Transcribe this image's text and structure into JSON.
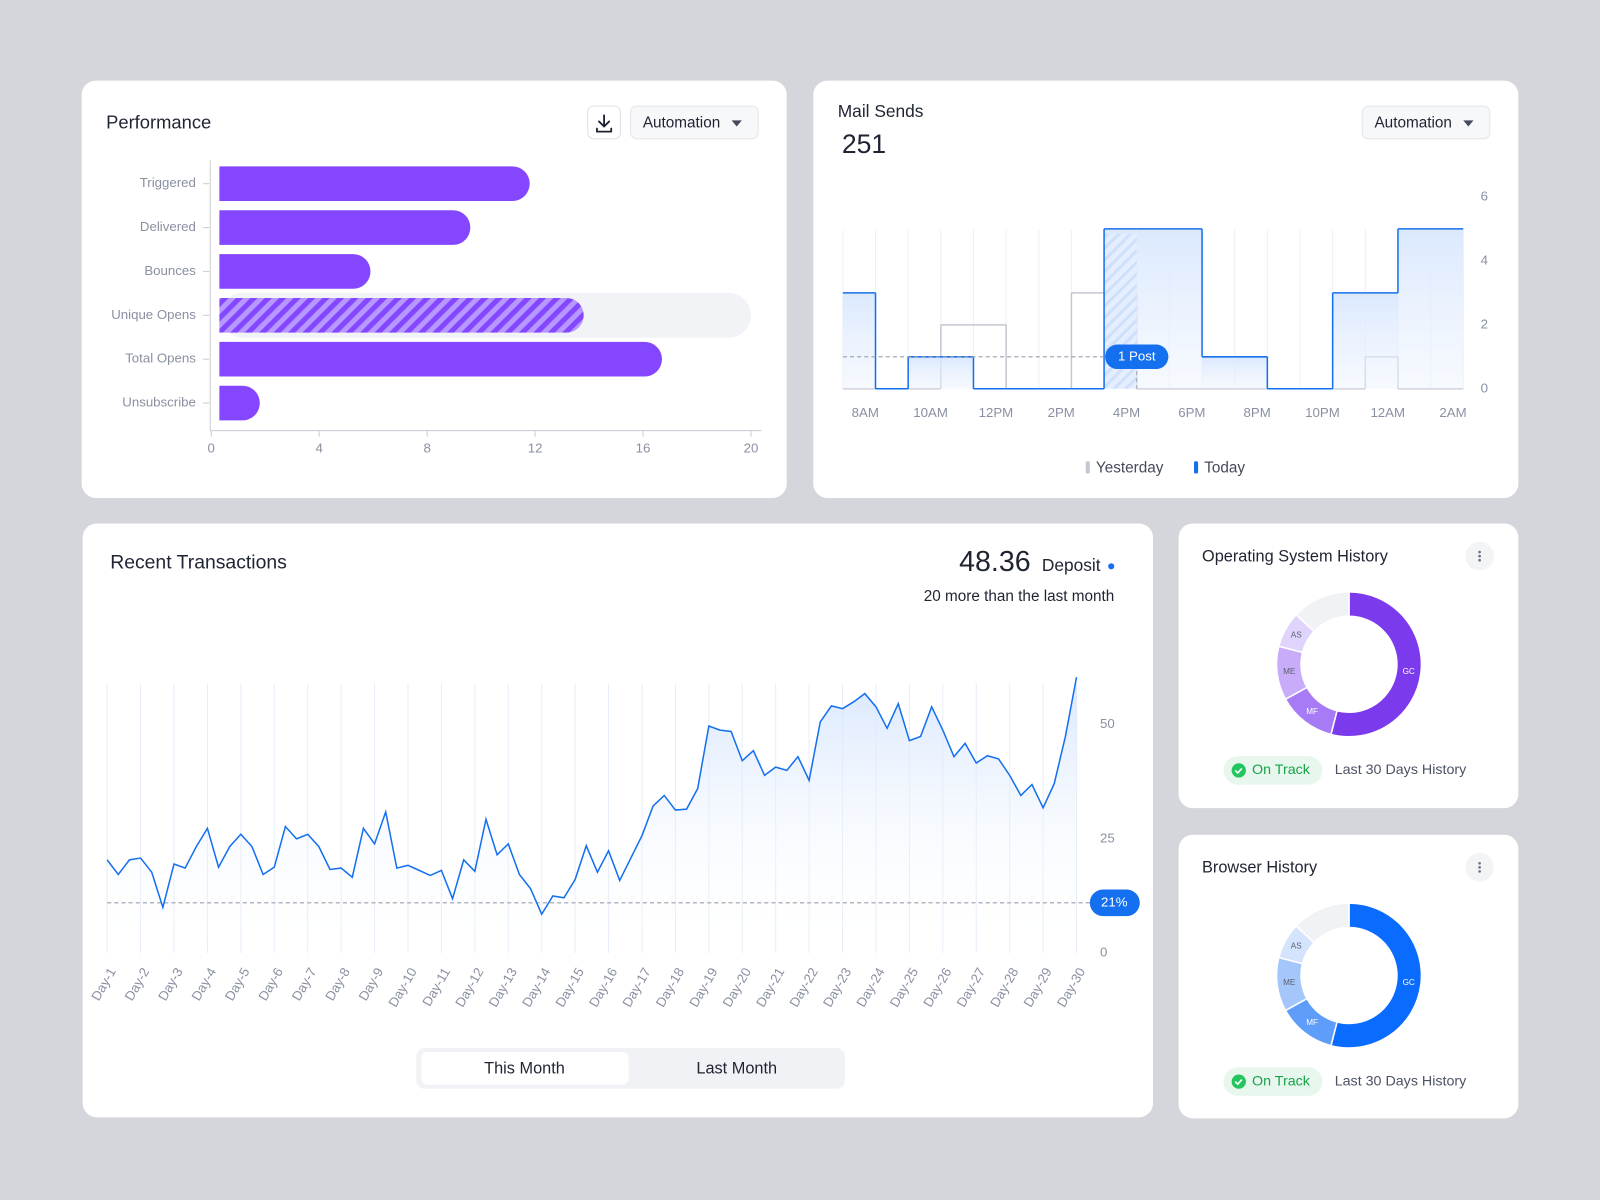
{
  "chart_data": [
    {
      "type": "hbar",
      "title": "Performance",
      "dropdown": "Automation",
      "categories": [
        "Triggered",
        "Delivered",
        "Bounces",
        "Unique Opens",
        "Total Opens",
        "Unsubscribe"
      ],
      "values": [
        11.8,
        9.6,
        5.9,
        13.8,
        16.7,
        1.8
      ],
      "hatched": [
        false,
        false,
        false,
        true,
        false,
        false
      ],
      "color": "#8447ff",
      "xlim": [
        0,
        20
      ],
      "xticks": [
        0,
        4,
        8,
        12,
        16,
        20
      ]
    },
    {
      "type": "step",
      "title": "Mail Sends",
      "total": 251,
      "dropdown": "Automation",
      "categories": [
        "8AM",
        null,
        "10AM",
        null,
        "12PM",
        null,
        "2PM",
        null,
        "4PM",
        null,
        "6PM",
        null,
        "8PM",
        null,
        "10PM",
        null,
        "12AM",
        null,
        "2AM"
      ],
      "series": [
        {
          "name": "Yesterday",
          "color": "#c3c7d0",
          "values": [
            0,
            0,
            0,
            2,
            2,
            0,
            0,
            3,
            3,
            0,
            0,
            0,
            0,
            0,
            0,
            0,
            1,
            0,
            0
          ]
        },
        {
          "name": "Today",
          "color": "#1570ef",
          "area": true,
          "values": [
            3,
            0,
            1,
            1,
            0,
            0,
            0,
            0,
            5,
            5,
            5,
            1,
            1,
            0,
            0,
            3,
            3,
            5,
            5
          ]
        }
      ],
      "ylim": [
        0,
        6
      ],
      "yticks": [
        0,
        2,
        4,
        6
      ],
      "grid": true,
      "annotation": {
        "text": "1 Post",
        "category": "4PM",
        "value": 1
      }
    },
    {
      "type": "line",
      "title": "Recent Transactions",
      "headline": 48.36,
      "headline_label": "Deposit",
      "subtitle": "20 more than the last month",
      "categories": [
        "Day-1",
        null,
        null,
        "Day-2",
        null,
        null,
        "Day-3",
        null,
        null,
        "Day-4",
        null,
        null,
        "Day-5",
        null,
        null,
        "Day-6",
        null,
        null,
        "Day-7",
        null,
        null,
        "Day-8",
        null,
        null,
        "Day-9",
        null,
        null,
        "Day-10",
        null,
        null,
        "Day-11",
        null,
        null,
        "Day-12",
        null,
        null,
        "Day-13",
        null,
        null,
        "Day-14",
        null,
        null,
        "Day-15",
        null,
        null,
        "Day-16",
        null,
        null,
        "Day-17",
        null,
        null,
        "Day-18",
        null,
        null,
        "Day-19",
        null,
        null,
        "Day-20",
        null,
        null,
        "Day-21",
        null,
        null,
        "Day-22",
        null,
        null,
        "Day-23",
        null,
        null,
        "Day-24",
        null,
        null,
        "Day-25",
        null,
        null,
        "Day-26",
        null,
        null,
        "Day-27",
        null,
        null,
        "Day-28",
        null,
        null,
        "Day-29",
        null,
        null,
        "Day-30"
      ],
      "values": [
        20.4,
        17.2,
        20.4,
        20.8,
        17.7,
        10,
        19.5,
        18.6,
        23.3,
        27.3,
        18.8,
        23.3,
        26,
        23.3,
        17.2,
        18.8,
        27.7,
        25,
        26,
        23.3,
        18.3,
        18.6,
        16.6,
        27.3,
        23.9,
        30.9,
        18.6,
        19.2,
        18.1,
        17,
        18.1,
        11.9,
        20.4,
        17.9,
        29.3,
        21.5,
        23.9,
        17.2,
        14.1,
        8.5,
        12.5,
        12.1,
        16.1,
        23.5,
        17.7,
        22.4,
        15.9,
        20.8,
        25.7,
        32.2,
        34.5,
        31.3,
        31.5,
        36,
        49.7,
        48.8,
        48.5,
        42.1,
        44.3,
        38.9,
        40.7,
        40,
        43,
        37.8,
        50.6,
        54.1,
        53.5,
        55,
        56.8,
        53.9,
        49.2,
        54.6,
        46.5,
        47.4,
        53.9,
        48.8,
        43,
        45.9,
        41.6,
        43.2,
        42.5,
        38.9,
        34.5,
        36.9,
        31.8,
        37.1,
        47.4,
        60.4
      ],
      "color": "#1570ef",
      "ylim": [
        0,
        65
      ],
      "yticks": [
        0,
        25,
        50
      ],
      "reference_line": 11,
      "reference_label": "21%",
      "tabs": [
        "This Month",
        "Last Month"
      ],
      "active_tab": "This Month"
    },
    {
      "type": "donut",
      "title": "Operating System History",
      "categories": [
        "GC",
        "MF",
        "ME",
        "AS",
        null
      ],
      "values": [
        54,
        13,
        12,
        8,
        13
      ],
      "colors": [
        "#7c3aed",
        "#a77bf6",
        "#c8acf9",
        "#e0d4fc",
        "#f1f2f5"
      ],
      "status": "On Track",
      "caption": "Last 30 Days History"
    },
    {
      "type": "donut",
      "title": "Browser History",
      "categories": [
        "GC",
        "MF",
        "ME",
        "AS",
        null
      ],
      "values": [
        54,
        13,
        12,
        8,
        13
      ],
      "colors": [
        "#0a6cff",
        "#5f9dfb",
        "#a5c6fb",
        "#d4e4fd",
        "#f1f2f5"
      ],
      "status": "On Track",
      "caption": "Last 30 Days History"
    }
  ]
}
